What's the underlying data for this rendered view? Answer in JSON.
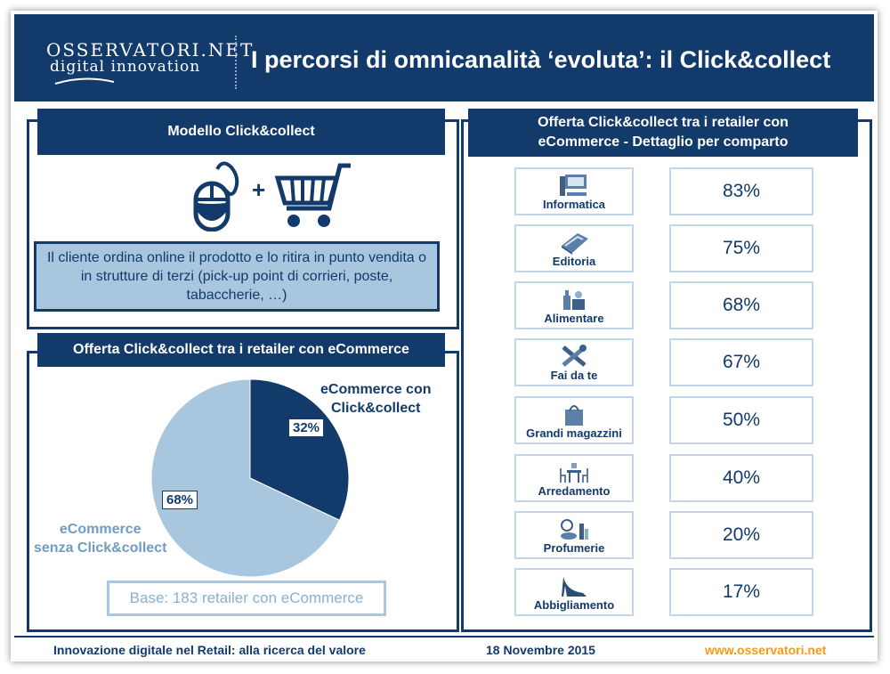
{
  "header": {
    "logo_top": "OSSERVATORI.NET",
    "logo_bottom": "digital innovation",
    "title": "I percorsi di omnicanalità ‘evoluta’: il Click&collect"
  },
  "model_panel": {
    "title": "Modello Click&collect",
    "plus": "+",
    "description": "Il cliente ordina online il prodotto e lo ritira in punto vendita o in strutture di terzi (pick-up point di corrieri, poste, tabaccherie, …)"
  },
  "pie_panel": {
    "title": "Offerta Click&collect tra i retailer con eCommerce",
    "base": "Base: 183 retailer con eCommerce"
  },
  "sector_panel": {
    "title_line1": "Offerta Click&collect tra i retailer con",
    "title_line2": "eCommerce - Dettaglio per comparto"
  },
  "chart_data": [
    {
      "type": "pie",
      "title": "Offerta Click&collect tra i retailer con eCommerce",
      "slices": [
        {
          "label_line1": "eCommerce con",
          "label_line2": "Click&collect",
          "value": 32,
          "value_label": "32%",
          "color": "#123a6b"
        },
        {
          "label_line1": "eCommerce",
          "label_line2": "senza Click&collect",
          "value": 68,
          "value_label": "68%",
          "color": "#a9c6df"
        }
      ]
    },
    {
      "type": "table",
      "title": "Offerta Click&collect tra i retailer con eCommerce - Dettaglio per comparto",
      "rows": [
        {
          "category": "Informatica",
          "icon": "computer-icon",
          "value": 83,
          "value_label": "83%"
        },
        {
          "category": "Editoria",
          "icon": "book-icon",
          "value": 75,
          "value_label": "75%"
        },
        {
          "category": "Alimentare",
          "icon": "grocery-icon",
          "value": 68,
          "value_label": "68%"
        },
        {
          "category": "Fai da te",
          "icon": "tools-icon",
          "value": 67,
          "value_label": "67%"
        },
        {
          "category": "Grandi magazzini",
          "icon": "shopping-bag-icon",
          "value": 50,
          "value_label": "50%"
        },
        {
          "category": "Arredamento",
          "icon": "furniture-icon",
          "value": 40,
          "value_label": "40%"
        },
        {
          "category": "Profumerie",
          "icon": "cosmetics-icon",
          "value": 20,
          "value_label": "20%"
        },
        {
          "category": "Abbigliamento",
          "icon": "high-heel-icon",
          "value": 17,
          "value_label": "17%"
        }
      ]
    }
  ],
  "footer": {
    "left": "Innovazione digitale nel Retail: alla ricerca del valore",
    "date": "18 Novembre 2015",
    "url": "www.osservatori.net"
  },
  "colors": {
    "navy": "#123a6b",
    "light_blue": "#a9c6df",
    "accent_orange": "#f39a1e"
  }
}
